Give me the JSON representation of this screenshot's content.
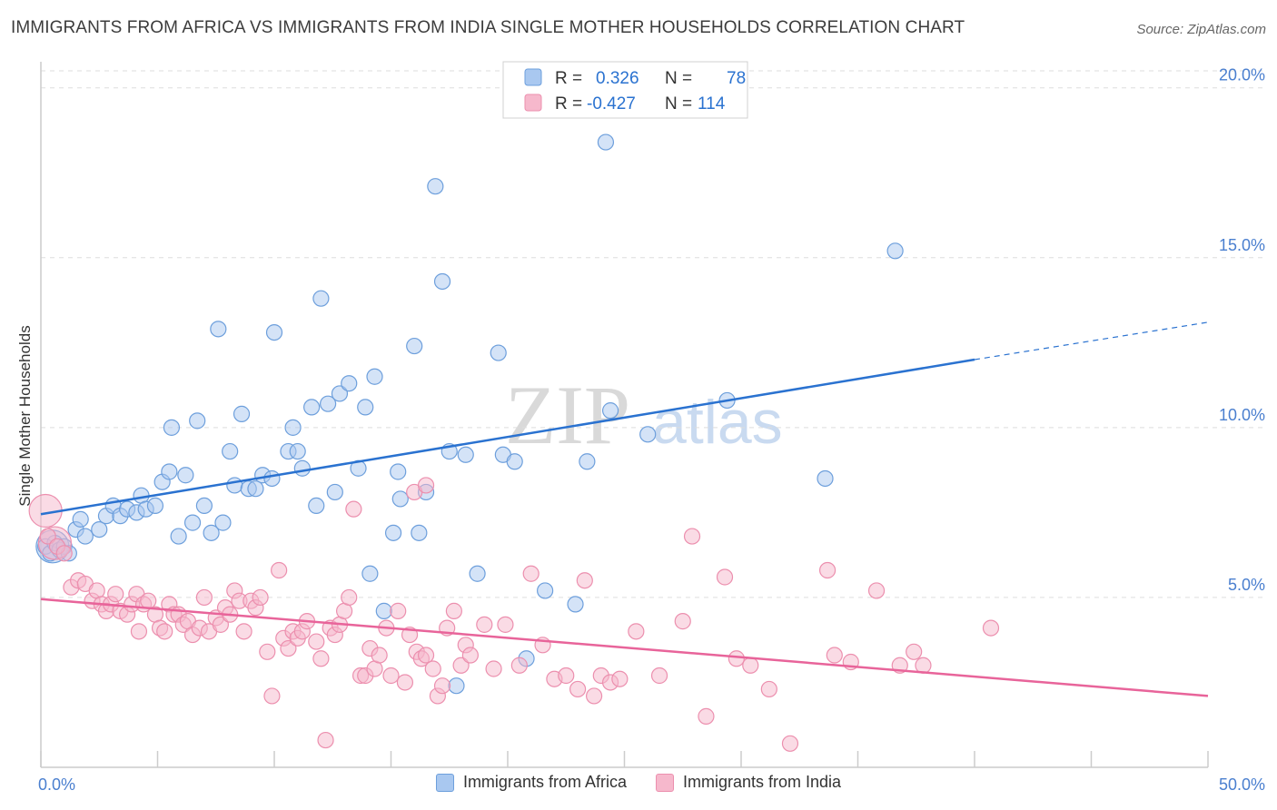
{
  "title": "IMMIGRANTS FROM AFRICA VS IMMIGRANTS FROM INDIA SINGLE MOTHER HOUSEHOLDS CORRELATION CHART",
  "source": "Source: ZipAtlas.com",
  "watermark": {
    "zip": "ZIP",
    "atlas": "atlas"
  },
  "legend": {
    "africa": {
      "r_label": "R =",
      "r_value": "0.326",
      "n_label": "N =",
      "n_value": "78"
    },
    "india": {
      "r_label": "R =",
      "r_value": "-0.427",
      "n_label": "N =",
      "n_value": "114"
    }
  },
  "bottom_legend": {
    "africa": "Immigrants from Africa",
    "india": "Immigrants from India"
  },
  "colors": {
    "africa_fill": "#a9c8f0",
    "africa_stroke": "#6d9fdc",
    "africa_line": "#2a72d0",
    "india_fill": "#f6b8cc",
    "india_stroke": "#ec8fae",
    "india_line": "#e8649a",
    "tick_text": "#4a7fcf",
    "grid": "#dddddd"
  },
  "chart_data": {
    "type": "scatter",
    "title": "IMMIGRANTS FROM AFRICA VS IMMIGRANTS FROM INDIA SINGLE MOTHER HOUSEHOLDS CORRELATION CHART",
    "xlabel": "",
    "ylabel": "Single Mother Households",
    "xlim": [
      0,
      50
    ],
    "ylim": [
      0,
      20.5
    ],
    "x_tick_labels": [
      "0.0%",
      "50.0%"
    ],
    "y_ticks": [
      5,
      10,
      15,
      20
    ],
    "y_tick_labels": [
      "5.0%",
      "10.0%",
      "15.0%",
      "20.0%"
    ],
    "grid": "horizontal dashed",
    "legend_position": "top-center",
    "series": [
      {
        "name": "Immigrants from Africa",
        "r": 0.326,
        "n": 78,
        "trend": {
          "x0": 0,
          "y0": 7.45,
          "x1": 40,
          "y1": 12.0,
          "dash_to_x": 50,
          "dash_to_y": 13.1
        },
        "points": [
          [
            0.2,
            6.5
          ],
          [
            0.4,
            6.3
          ],
          [
            0.6,
            6.6
          ],
          [
            0.8,
            6.4
          ],
          [
            1.0,
            6.5
          ],
          [
            1.2,
            6.3
          ],
          [
            1.5,
            7.0
          ],
          [
            1.7,
            7.3
          ],
          [
            1.9,
            6.8
          ],
          [
            2.5,
            7.0
          ],
          [
            2.8,
            7.4
          ],
          [
            3.1,
            7.7
          ],
          [
            3.4,
            7.4
          ],
          [
            3.7,
            7.6
          ],
          [
            4.1,
            7.5
          ],
          [
            4.3,
            8.0
          ],
          [
            4.5,
            7.6
          ],
          [
            4.9,
            7.7
          ],
          [
            5.2,
            8.4
          ],
          [
            5.5,
            8.7
          ],
          [
            5.6,
            10.0
          ],
          [
            5.9,
            6.8
          ],
          [
            6.2,
            8.6
          ],
          [
            6.5,
            7.2
          ],
          [
            6.7,
            10.2
          ],
          [
            7.0,
            7.7
          ],
          [
            7.3,
            6.9
          ],
          [
            7.6,
            12.9
          ],
          [
            7.8,
            7.2
          ],
          [
            8.1,
            9.3
          ],
          [
            8.3,
            8.3
          ],
          [
            8.6,
            10.4
          ],
          [
            8.9,
            8.2
          ],
          [
            9.2,
            8.2
          ],
          [
            9.5,
            8.6
          ],
          [
            9.9,
            8.5
          ],
          [
            10.0,
            12.8
          ],
          [
            10.6,
            9.3
          ],
          [
            10.8,
            10.0
          ],
          [
            11.0,
            9.3
          ],
          [
            11.2,
            8.8
          ],
          [
            11.6,
            10.6
          ],
          [
            11.8,
            7.7
          ],
          [
            12.0,
            13.8
          ],
          [
            12.3,
            10.7
          ],
          [
            12.6,
            8.1
          ],
          [
            12.8,
            11.0
          ],
          [
            13.2,
            11.3
          ],
          [
            13.6,
            8.8
          ],
          [
            13.9,
            10.6
          ],
          [
            14.1,
            5.7
          ],
          [
            14.3,
            11.5
          ],
          [
            14.7,
            4.6
          ],
          [
            15.1,
            6.9
          ],
          [
            15.3,
            8.7
          ],
          [
            15.4,
            7.9
          ],
          [
            16.0,
            12.4
          ],
          [
            16.2,
            6.9
          ],
          [
            16.5,
            8.1
          ],
          [
            16.9,
            17.1
          ],
          [
            17.2,
            14.3
          ],
          [
            17.5,
            9.3
          ],
          [
            17.8,
            2.4
          ],
          [
            18.2,
            9.2
          ],
          [
            18.7,
            5.7
          ],
          [
            19.6,
            12.2
          ],
          [
            19.8,
            9.2
          ],
          [
            20.3,
            9.0
          ],
          [
            21.6,
            5.2
          ],
          [
            22.9,
            4.8
          ],
          [
            23.4,
            9.0
          ],
          [
            24.2,
            18.4
          ],
          [
            24.4,
            10.5
          ],
          [
            26.0,
            9.8
          ],
          [
            29.4,
            10.8
          ],
          [
            33.6,
            8.5
          ],
          [
            36.6,
            15.2
          ],
          [
            20.8,
            3.2
          ]
        ],
        "big_points": [
          [
            0.5,
            6.5
          ]
        ]
      },
      {
        "name": "Immigrants from India",
        "r": -0.427,
        "n": 114,
        "trend": {
          "x0": 0,
          "y0": 4.95,
          "x1": 50,
          "y1": 2.1
        },
        "points": [
          [
            0.3,
            6.8
          ],
          [
            0.7,
            6.5
          ],
          [
            1.0,
            6.3
          ],
          [
            1.3,
            5.3
          ],
          [
            1.6,
            5.5
          ],
          [
            1.9,
            5.4
          ],
          [
            2.2,
            4.9
          ],
          [
            2.4,
            5.2
          ],
          [
            2.6,
            4.8
          ],
          [
            2.8,
            4.6
          ],
          [
            3.0,
            4.8
          ],
          [
            3.2,
            5.1
          ],
          [
            3.4,
            4.6
          ],
          [
            3.7,
            4.5
          ],
          [
            3.9,
            4.8
          ],
          [
            4.1,
            5.1
          ],
          [
            4.2,
            4.0
          ],
          [
            4.4,
            4.8
          ],
          [
            4.6,
            4.9
          ],
          [
            4.9,
            4.5
          ],
          [
            5.1,
            4.1
          ],
          [
            5.3,
            4.0
          ],
          [
            5.5,
            4.8
          ],
          [
            5.7,
            4.5
          ],
          [
            5.9,
            4.5
          ],
          [
            6.1,
            4.2
          ],
          [
            6.3,
            4.3
          ],
          [
            6.5,
            3.9
          ],
          [
            6.8,
            4.1
          ],
          [
            7.0,
            5.0
          ],
          [
            7.2,
            4.0
          ],
          [
            7.5,
            4.4
          ],
          [
            7.7,
            4.2
          ],
          [
            7.9,
            4.7
          ],
          [
            8.1,
            4.5
          ],
          [
            8.3,
            5.2
          ],
          [
            8.5,
            4.9
          ],
          [
            8.7,
            4.0
          ],
          [
            9.0,
            4.9
          ],
          [
            9.2,
            4.7
          ],
          [
            9.4,
            5.0
          ],
          [
            9.7,
            3.4
          ],
          [
            9.9,
            2.1
          ],
          [
            10.2,
            5.8
          ],
          [
            10.4,
            3.8
          ],
          [
            10.6,
            3.5
          ],
          [
            10.8,
            4.0
          ],
          [
            11.0,
            3.8
          ],
          [
            11.2,
            4.0
          ],
          [
            11.4,
            4.3
          ],
          [
            11.8,
            3.7
          ],
          [
            12.0,
            3.2
          ],
          [
            12.2,
            0.8
          ],
          [
            12.4,
            4.1
          ],
          [
            12.6,
            3.9
          ],
          [
            12.8,
            4.2
          ],
          [
            13.0,
            4.6
          ],
          [
            13.2,
            5.0
          ],
          [
            13.4,
            7.6
          ],
          [
            13.7,
            2.7
          ],
          [
            13.9,
            2.7
          ],
          [
            14.1,
            3.5
          ],
          [
            14.3,
            2.9
          ],
          [
            14.5,
            3.3
          ],
          [
            14.8,
            4.1
          ],
          [
            15.0,
            2.7
          ],
          [
            15.3,
            4.6
          ],
          [
            15.6,
            2.5
          ],
          [
            15.8,
            3.9
          ],
          [
            16.1,
            3.4
          ],
          [
            16.3,
            3.2
          ],
          [
            16.5,
            3.3
          ],
          [
            16.8,
            2.9
          ],
          [
            17.0,
            2.1
          ],
          [
            17.2,
            2.4
          ],
          [
            17.4,
            4.1
          ],
          [
            17.7,
            4.6
          ],
          [
            18.0,
            3.0
          ],
          [
            18.2,
            3.6
          ],
          [
            18.4,
            3.3
          ],
          [
            19.0,
            4.2
          ],
          [
            19.4,
            2.9
          ],
          [
            19.9,
            4.2
          ],
          [
            20.5,
            3.0
          ],
          [
            21.0,
            5.7
          ],
          [
            21.5,
            3.6
          ],
          [
            22.0,
            2.6
          ],
          [
            22.5,
            2.7
          ],
          [
            23.0,
            2.3
          ],
          [
            23.3,
            5.5
          ],
          [
            23.7,
            2.1
          ],
          [
            24.0,
            2.7
          ],
          [
            24.4,
            2.5
          ],
          [
            24.8,
            2.6
          ],
          [
            25.5,
            4.0
          ],
          [
            26.5,
            2.7
          ],
          [
            27.5,
            4.3
          ],
          [
            27.9,
            6.8
          ],
          [
            28.5,
            1.5
          ],
          [
            29.3,
            5.6
          ],
          [
            29.8,
            3.2
          ],
          [
            30.4,
            3.0
          ],
          [
            31.2,
            2.3
          ],
          [
            32.1,
            0.7
          ],
          [
            33.7,
            5.8
          ],
          [
            34.0,
            3.3
          ],
          [
            34.7,
            3.1
          ],
          [
            35.8,
            5.2
          ],
          [
            36.8,
            3.0
          ],
          [
            37.4,
            3.4
          ],
          [
            37.8,
            3.0
          ],
          [
            40.7,
            4.1
          ],
          [
            16.0,
            8.1
          ],
          [
            16.5,
            8.3
          ]
        ],
        "big_points": [
          [
            0.2,
            7.55
          ],
          [
            0.6,
            6.6
          ]
        ]
      }
    ]
  }
}
